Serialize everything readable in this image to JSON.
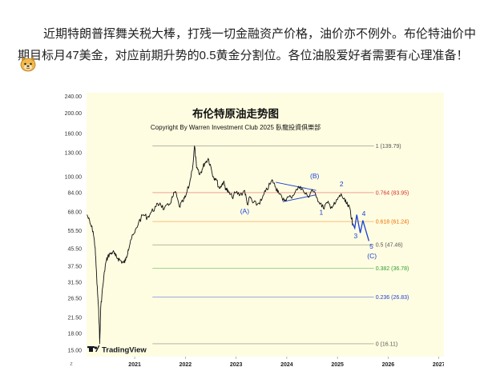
{
  "post": {
    "text": "近期特朗普挥舞关税大棒，打残一切金融资产价格，油价亦不例外。布伦特油价中期目标月47美金，对应前期升势的0.5黄金分割位。各位油股爱好者需要有心理准备！",
    "emoji_icon": "dog-face-emoji-icon"
  },
  "chart": {
    "title": "布伦特原油走势图",
    "subtitle": "Copyright By Warren Investment Club 2025 臥龍投資俱樂部",
    "watermark": "TradingView",
    "background": "#fffde1",
    "line_color": "#111111",
    "wave_color": "#1a3fd6"
  },
  "chart_data": {
    "type": "line",
    "y_scale": "log",
    "y_ticks": [
      240,
      200,
      160,
      130,
      100,
      84,
      68,
      55.5,
      45.5,
      37.5,
      31.5,
      26.5,
      21.5,
      18,
      15
    ],
    "y_tick_labels": [
      "240.00",
      "200.00",
      "160.00",
      "130.00",
      "100.00",
      "84.00",
      "68.00",
      "55.50",
      "45.50",
      "37.50",
      "31.50",
      "26.50",
      "21.50",
      "18.00",
      "15.00"
    ],
    "ylim": [
      14,
      250
    ],
    "x_ticks": [
      2021,
      2022,
      2023,
      2024,
      2025,
      2026,
      2027
    ],
    "xlim": [
      2020.05,
      2027.1
    ],
    "corner_label": "z",
    "fib_levels": [
      {
        "label": "1 (139.79)",
        "value": 139.79,
        "color": "#555555"
      },
      {
        "label": "0.764 (83.95)",
        "value": 83.95,
        "color": "#d32f2f"
      },
      {
        "label": "0.618 (61.24)",
        "value": 61.24,
        "color": "#ef6c00"
      },
      {
        "label": "0.5 (47.46)",
        "value": 47.46,
        "color": "#555555"
      },
      {
        "label": "0.382 (36.78)",
        "value": 36.78,
        "color": "#2e9d2e"
      },
      {
        "label": "0.236 (26.83)",
        "value": 26.83,
        "color": "#1a3fd6"
      },
      {
        "label": "0 (16.11)",
        "value": 16.11,
        "color": "#555555"
      }
    ],
    "price_path": [
      [
        2020.06,
        66
      ],
      [
        2020.12,
        60
      ],
      [
        2020.18,
        55
      ],
      [
        2020.22,
        46
      ],
      [
        2020.25,
        33
      ],
      [
        2020.28,
        25
      ],
      [
        2020.3,
        20
      ],
      [
        2020.31,
        16.11
      ],
      [
        2020.33,
        24
      ],
      [
        2020.37,
        30
      ],
      [
        2020.42,
        38
      ],
      [
        2020.47,
        42
      ],
      [
        2020.52,
        43
      ],
      [
        2020.57,
        44
      ],
      [
        2020.62,
        42
      ],
      [
        2020.67,
        41
      ],
      [
        2020.72,
        40
      ],
      [
        2020.78,
        39
      ],
      [
        2020.82,
        40
      ],
      [
        2020.87,
        45
      ],
      [
        2020.92,
        50
      ],
      [
        2021.0,
        54
      ],
      [
        2021.08,
        61
      ],
      [
        2021.17,
        66
      ],
      [
        2021.25,
        64
      ],
      [
        2021.33,
        68
      ],
      [
        2021.42,
        72
      ],
      [
        2021.5,
        75
      ],
      [
        2021.58,
        70
      ],
      [
        2021.67,
        73
      ],
      [
        2021.75,
        80
      ],
      [
        2021.8,
        85
      ],
      [
        2021.88,
        72
      ],
      [
        2021.95,
        76
      ],
      [
        2022.0,
        80
      ],
      [
        2022.08,
        92
      ],
      [
        2022.15,
        115
      ],
      [
        2022.18,
        139.79
      ],
      [
        2022.22,
        110
      ],
      [
        2022.28,
        102
      ],
      [
        2022.33,
        108
      ],
      [
        2022.38,
        116
      ],
      [
        2022.45,
        122
      ],
      [
        2022.5,
        112
      ],
      [
        2022.55,
        100
      ],
      [
        2022.6,
        98
      ],
      [
        2022.67,
        88
      ],
      [
        2022.72,
        92
      ],
      [
        2022.75,
        94
      ],
      [
        2022.8,
        88
      ],
      [
        2022.85,
        84
      ],
      [
        2022.92,
        80
      ],
      [
        2023.0,
        84
      ],
      [
        2023.08,
        82
      ],
      [
        2023.17,
        86
      ],
      [
        2023.22,
        74
      ],
      [
        2023.28,
        80
      ],
      [
        2023.33,
        75
      ],
      [
        2023.42,
        74
      ],
      [
        2023.5,
        77
      ],
      [
        2023.58,
        85
      ],
      [
        2023.67,
        92
      ],
      [
        2023.72,
        96
      ],
      [
        2023.78,
        89
      ],
      [
        2023.83,
        86
      ],
      [
        2023.92,
        77
      ],
      [
        2024.0,
        79
      ],
      [
        2024.08,
        80
      ],
      [
        2024.17,
        85
      ],
      [
        2024.27,
        90
      ],
      [
        2024.33,
        85
      ],
      [
        2024.42,
        80
      ],
      [
        2024.5,
        87
      ],
      [
        2024.58,
        80
      ],
      [
        2024.67,
        75
      ],
      [
        2024.72,
        71
      ],
      [
        2024.8,
        75
      ],
      [
        2024.88,
        72
      ],
      [
        2024.95,
        74
      ],
      [
        2025.03,
        80
      ],
      [
        2025.08,
        82
      ],
      [
        2025.15,
        76
      ],
      [
        2025.2,
        73
      ],
      [
        2025.25,
        70
      ],
      [
        2025.28,
        63
      ],
      [
        2025.3,
        60
      ]
    ],
    "wave_path": [
      [
        2025.3,
        60
      ],
      [
        2025.34,
        57
      ],
      [
        2025.38,
        66
      ],
      [
        2025.45,
        54
      ],
      [
        2025.5,
        62
      ],
      [
        2025.62,
        49.5
      ]
    ],
    "triangle": {
      "upper": [
        [
          2023.78,
          94
        ],
        [
          2024.58,
          86
        ]
      ],
      "lower": [
        [
          2023.92,
          76
        ],
        [
          2024.58,
          82
        ]
      ]
    },
    "wave_labels": [
      {
        "text": "(A)",
        "x": 2023.17,
        "y": 67
      },
      {
        "text": "(B)",
        "x": 2024.55,
        "y": 98
      },
      {
        "text": "1",
        "x": 2024.68,
        "y": 66
      },
      {
        "text": "2",
        "x": 2025.08,
        "y": 90
      },
      {
        "text": "3",
        "x": 2025.36,
        "y": 51
      },
      {
        "text": "4",
        "x": 2025.52,
        "y": 65
      },
      {
        "text": "5",
        "x": 2025.67,
        "y": 45.5
      },
      {
        "text": "(C)",
        "x": 2025.68,
        "y": 41
      }
    ]
  }
}
